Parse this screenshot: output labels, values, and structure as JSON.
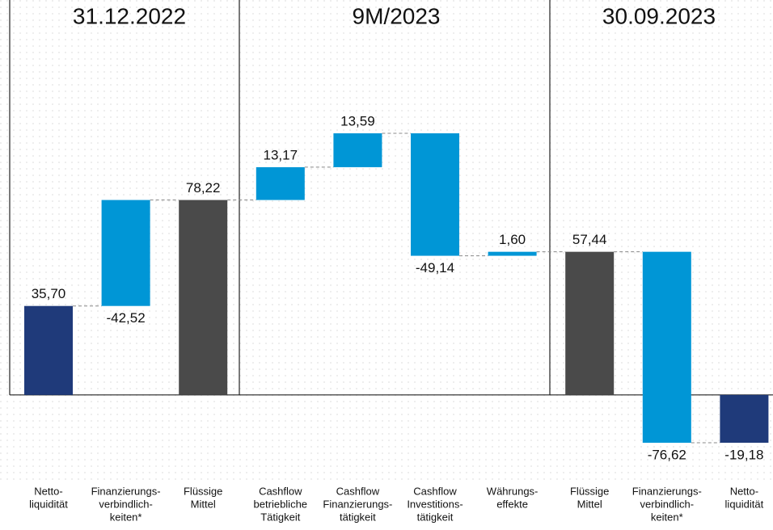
{
  "chart_data": {
    "type": "waterfall",
    "sections": [
      "31.12.2022",
      "9M/2023",
      "30.09.2023"
    ],
    "categories": [
      [
        "Netto-",
        "liquidität"
      ],
      [
        "Finanzierungs-",
        "verbindlich-",
        "keiten*"
      ],
      [
        "Flüssige",
        "Mittel"
      ],
      [
        "Cashflow",
        "betriebliche",
        "Tätigkeit"
      ],
      [
        "Cashflow",
        "Finanzierungs-",
        "tätigkeit"
      ],
      [
        "Cashflow",
        "Investitions-",
        "tätigkeit"
      ],
      [
        "Währungs-",
        "effekte"
      ],
      [
        "Flüssige",
        "Mittel"
      ],
      [
        "Finanzierungs-",
        "verbindlich-",
        "keiten*"
      ],
      [
        "Netto-",
        "liquidität"
      ]
    ],
    "measure": [
      "total",
      "bridge",
      "total",
      "delta",
      "delta",
      "delta",
      "delta",
      "total",
      "delta",
      "total"
    ],
    "values": [
      35.7,
      -42.52,
      78.22,
      13.17,
      13.59,
      -49.14,
      1.6,
      57.44,
      -76.62,
      -19.18
    ],
    "value_labels": [
      "35,70",
      "-42,52",
      "78,22",
      "13,17",
      "13,59",
      "-49,14",
      "1,60",
      "57,44",
      "-76,62",
      "-19,18"
    ],
    "colors": [
      "#1f3a7a",
      "#0096d6",
      "#4a4a4a",
      "#0096d6",
      "#0096d6",
      "#0096d6",
      "#0096d6",
      "#4a4a4a",
      "#0096d6",
      "#1f3a7a"
    ]
  }
}
